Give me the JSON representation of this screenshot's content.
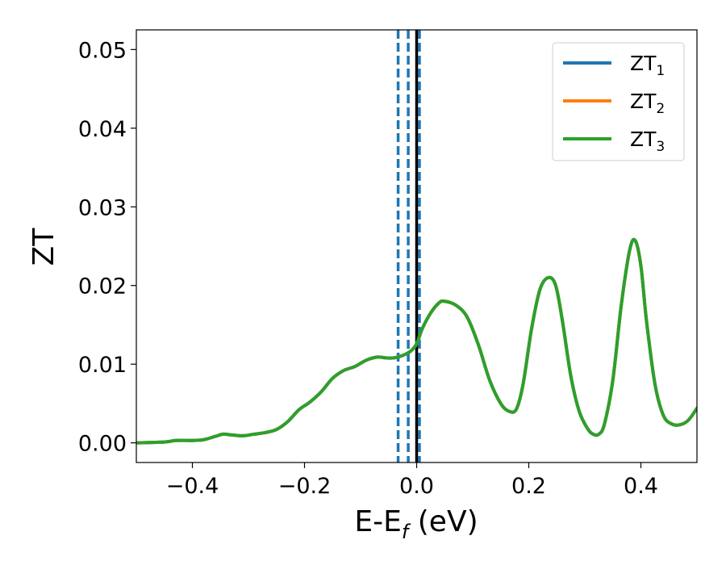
{
  "chart_data": {
    "type": "line",
    "title": "",
    "xlabel": {
      "base": "E-E",
      "sub": "f",
      "suffix": " (eV)"
    },
    "ylabel": "ZT",
    "xlim": [
      -0.5,
      0.5
    ],
    "ylim": [
      -0.0025,
      0.0525
    ],
    "xticks": [
      -0.4,
      -0.2,
      0.0,
      0.2,
      0.4
    ],
    "xtick_labels": [
      "−0.4",
      "−0.2",
      "0.0",
      "0.2",
      "0.4"
    ],
    "yticks": [
      0.0,
      0.01,
      0.02,
      0.03,
      0.04,
      0.05
    ],
    "ytick_labels": [
      "0.00",
      "0.01",
      "0.02",
      "0.03",
      "0.04",
      "0.05"
    ],
    "grid": false,
    "legend_position": "top-right",
    "series": [
      {
        "name": "ZT",
        "sub": "1",
        "color": "#1f77b4"
      },
      {
        "name": "ZT",
        "sub": "2",
        "color": "#ff7f0e"
      },
      {
        "name": "ZT",
        "sub": "3",
        "color": "#2ca02c"
      }
    ],
    "x": [
      -0.5,
      -0.45,
      -0.43,
      -0.4,
      -0.38,
      -0.36,
      -0.345,
      -0.33,
      -0.31,
      -0.29,
      -0.27,
      -0.25,
      -0.23,
      -0.21,
      -0.19,
      -0.17,
      -0.15,
      -0.13,
      -0.11,
      -0.09,
      -0.07,
      -0.055,
      -0.04,
      -0.025,
      -0.01,
      0.0,
      0.01,
      0.025,
      0.04,
      0.05,
      0.07,
      0.09,
      0.11,
      0.13,
      0.15,
      0.165,
      0.178,
      0.19,
      0.205,
      0.22,
      0.235,
      0.248,
      0.26,
      0.275,
      0.29,
      0.305,
      0.315,
      0.325,
      0.335,
      0.35,
      0.365,
      0.38,
      0.39,
      0.4,
      0.41,
      0.425,
      0.44,
      0.455,
      0.47,
      0.485,
      0.5
    ],
    "y": [
      0.0,
      0.0001,
      0.0003,
      0.0003,
      0.0004,
      0.0008,
      0.0011,
      0.001,
      0.0009,
      0.0011,
      0.0013,
      0.0017,
      0.0027,
      0.0042,
      0.0052,
      0.0065,
      0.0082,
      0.0092,
      0.0097,
      0.0105,
      0.0109,
      0.0108,
      0.0108,
      0.0111,
      0.0117,
      0.0126,
      0.0145,
      0.0165,
      0.0178,
      0.018,
      0.0175,
      0.016,
      0.0125,
      0.008,
      0.005,
      0.004,
      0.0043,
      0.0075,
      0.0145,
      0.0195,
      0.021,
      0.02,
      0.0155,
      0.0085,
      0.004,
      0.0018,
      0.0011,
      0.0011,
      0.0024,
      0.008,
      0.0175,
      0.0245,
      0.0257,
      0.0225,
      0.0155,
      0.0075,
      0.0035,
      0.0024,
      0.0023,
      0.0029,
      0.0044
    ],
    "vlines": [
      {
        "x": -0.033,
        "color": "#1f77b4",
        "style": "dashed"
      },
      {
        "x": -0.015,
        "color": "#1f77b4",
        "style": "dashed"
      },
      {
        "x": 0.005,
        "color": "#1f77b4",
        "style": "dashed"
      },
      {
        "x": 0.0,
        "color": "#000000",
        "style": "solid"
      }
    ]
  }
}
